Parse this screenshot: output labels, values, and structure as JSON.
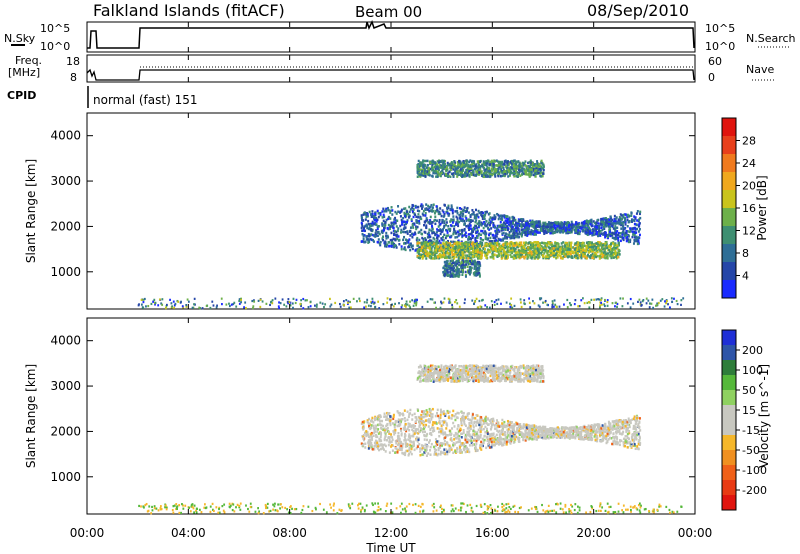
{
  "header": {
    "station": "Falkland Islands (fitACF)",
    "beam": "Beam 00",
    "date": "08/Sep/2010"
  },
  "top_panels": {
    "nsky_label": "N.Sky",
    "nsky_ticks": [
      "10^5",
      "10^0"
    ],
    "nsearch_label": "N.Search",
    "nsearch_ticks": [
      "10^5",
      "10^0"
    ],
    "freq_label": [
      "Freq.",
      "[MHz]"
    ],
    "freq_ticks": [
      "18",
      "8"
    ],
    "nave_label": "Nave",
    "nave_ticks": [
      "60",
      "0"
    ],
    "cpid_label": "CPID",
    "cpid_text": "normal (fast) 151"
  },
  "colors": {
    "power": [
      "#1a2bff",
      "#2546a8",
      "#2e6e96",
      "#3e8f72",
      "#6db04a",
      "#c9c41c",
      "#f0a81e",
      "#f07a1e",
      "#e8401c",
      "#e0140e"
    ],
    "velocity": [
      "#1f2fd6",
      "#2e55a8",
      "#2e7d3a",
      "#55b83a",
      "#8fd160",
      "#c8c8c0",
      "#c8c8c0",
      "#f5b72a",
      "#f09020",
      "#f06018",
      "#e83a14",
      "#e0140e"
    ]
  },
  "chart_data": [
    {
      "type": "heatmap",
      "title": "Power",
      "ylabel": "Slant Range [km]",
      "ylim": [
        180,
        4500
      ],
      "yticks": [
        1000,
        2000,
        3000,
        4000
      ],
      "colorbar": {
        "label": "Power [dB]",
        "ticks": [
          "4",
          "8",
          "12",
          "16",
          "20",
          "24",
          "28"
        ],
        "range": [
          0,
          30
        ]
      },
      "regions": [
        {
          "t_start": 10.8,
          "t_end": 21.8,
          "range_center": 2000,
          "value": 6
        },
        {
          "t_start": 13.0,
          "t_end": 21.0,
          "range_center": 1500,
          "value": 14
        },
        {
          "t_start": 13.0,
          "t_end": 18.0,
          "range_center": 3300,
          "value": 10
        },
        {
          "t_start": 14.0,
          "t_end": 15.5,
          "range_center": 1100,
          "value": 8
        }
      ]
    },
    {
      "type": "heatmap",
      "title": "Velocity",
      "ylabel": "Slant Range [km]",
      "ylim": [
        180,
        4500
      ],
      "yticks": [
        1000,
        2000,
        3000,
        4000
      ],
      "colorbar": {
        "label": "Velocity [m s^-1]",
        "ticks": [
          "200",
          "100",
          "50",
          "15",
          "-15",
          "-50",
          "-100",
          "-200"
        ],
        "range": [
          -250,
          250
        ]
      },
      "regions": [
        {
          "t_start": 10.8,
          "t_end": 21.8,
          "range_center": 2000,
          "value": 0
        },
        {
          "t_start": 13.0,
          "t_end": 18.0,
          "range_center": 3300,
          "value": 0
        }
      ]
    }
  ],
  "time_axis": {
    "xlabel": "Time UT",
    "ticks": [
      "00:00",
      "04:00",
      "08:00",
      "12:00",
      "16:00",
      "20:00",
      "00:00"
    ]
  }
}
